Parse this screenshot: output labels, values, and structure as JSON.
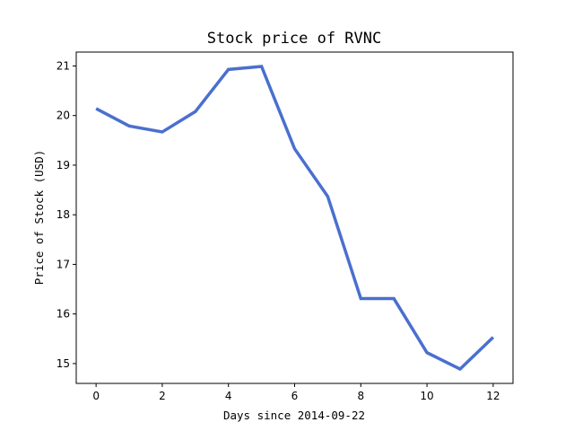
{
  "chart_data": {
    "type": "line",
    "title": "Stock price of RVNC",
    "xlabel": "Days since 2014-09-22",
    "ylabel": "Price of Stock (USD)",
    "x": [
      0,
      1,
      2,
      3,
      4,
      5,
      6,
      7,
      8,
      9,
      10,
      11,
      12
    ],
    "series": [
      {
        "values": [
          20.14,
          19.79,
          19.67,
          20.08,
          20.93,
          20.99,
          19.33,
          18.37,
          16.31,
          16.31,
          15.22,
          14.89,
          15.53
        ]
      }
    ],
    "xlim": [
      -0.6,
      12.6
    ],
    "ylim": [
      14.6,
      21.28
    ],
    "xticks": [
      0,
      2,
      4,
      6,
      8,
      10,
      12
    ],
    "yticks": [
      15,
      16,
      17,
      18,
      19,
      20,
      21
    ],
    "xtick_labels": [
      "0",
      "2",
      "4",
      "6",
      "8",
      "10",
      "12"
    ],
    "ytick_labels": [
      "15",
      "16",
      "17",
      "18",
      "19",
      "20",
      "21"
    ],
    "line_color": "#4a6fcf",
    "grid": false,
    "legend": "none"
  }
}
